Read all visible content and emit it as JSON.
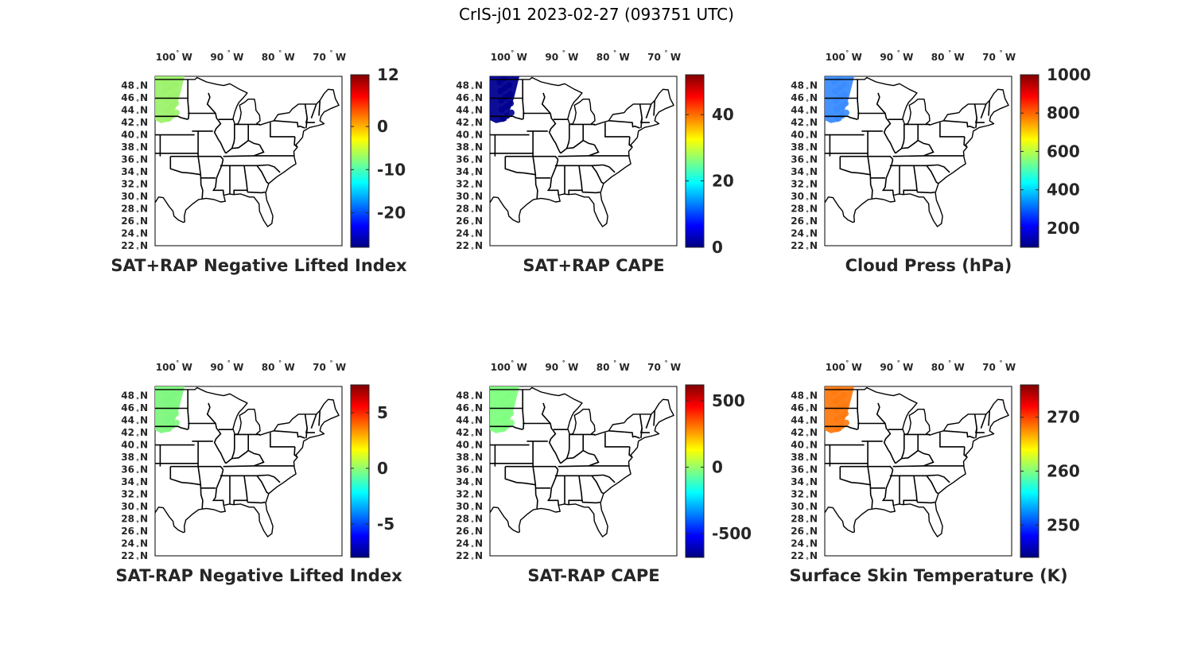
{
  "figure": {
    "title": "CrIS-j01 2023-02-27 (093751 UTC)"
  },
  "map_axes": {
    "lon_ticks": [
      {
        "value": -100,
        "label": "100",
        "hemi": "W"
      },
      {
        "value": -90,
        "label": "90",
        "hemi": "W"
      },
      {
        "value": -80,
        "label": "80",
        "hemi": "W"
      },
      {
        "value": -70,
        "label": "70",
        "hemi": "W"
      }
    ],
    "lat_ticks": [
      {
        "value": 48,
        "label": "48",
        "hemi": "N"
      },
      {
        "value": 46,
        "label": "46",
        "hemi": "N"
      },
      {
        "value": 44,
        "label": "44",
        "hemi": "N"
      },
      {
        "value": 42,
        "label": "42",
        "hemi": "N"
      },
      {
        "value": 40,
        "label": "40",
        "hemi": "N"
      },
      {
        "value": 38,
        "label": "38",
        "hemi": "N"
      },
      {
        "value": 36,
        "label": "36",
        "hemi": "N"
      },
      {
        "value": 34,
        "label": "34",
        "hemi": "N"
      },
      {
        "value": 32,
        "label": "32",
        "hemi": "N"
      },
      {
        "value": 30,
        "label": "30",
        "hemi": "N"
      },
      {
        "value": 28,
        "label": "28",
        "hemi": "N"
      },
      {
        "value": 26,
        "label": "26",
        "hemi": "N"
      },
      {
        "value": 24,
        "label": "24",
        "hemi": "N"
      },
      {
        "value": 22,
        "label": "22",
        "hemi": "N"
      }
    ],
    "colormap": "jet"
  },
  "panels": [
    {
      "title": "SAT+RAP Negative Lifted Index",
      "colorbar": {
        "range": [
          -28,
          12
        ],
        "ticks": [
          12,
          0,
          -10,
          -20
        ]
      },
      "fill_color": "#9cf26b"
    },
    {
      "title": "SAT+RAP CAPE",
      "colorbar": {
        "range": [
          0,
          52
        ],
        "ticks": [
          40,
          20,
          0
        ]
      },
      "fill_color": "#00008f"
    },
    {
      "title": "Cloud Press (hPa)",
      "colorbar": {
        "range": [
          100,
          1000
        ],
        "ticks": [
          1000,
          800,
          600,
          400,
          200
        ]
      },
      "fill_color": "#3a8cff"
    },
    {
      "title": "SAT-RAP Negative Lifted Index",
      "colorbar": {
        "range": [
          -8,
          7.5
        ],
        "ticks": [
          5,
          0,
          -5
        ]
      },
      "fill_color": "#7df77d"
    },
    {
      "title": "SAT-RAP CAPE",
      "colorbar": {
        "range": [
          -680,
          620
        ],
        "ticks": [
          500,
          0,
          -500
        ]
      },
      "fill_color": "#80ff80"
    },
    {
      "title": "Surface Skin Temperature (K)",
      "colorbar": {
        "range": [
          244,
          276
        ],
        "ticks": [
          270,
          260,
          250
        ]
      },
      "fill_color": "#ff7a10"
    }
  ]
}
